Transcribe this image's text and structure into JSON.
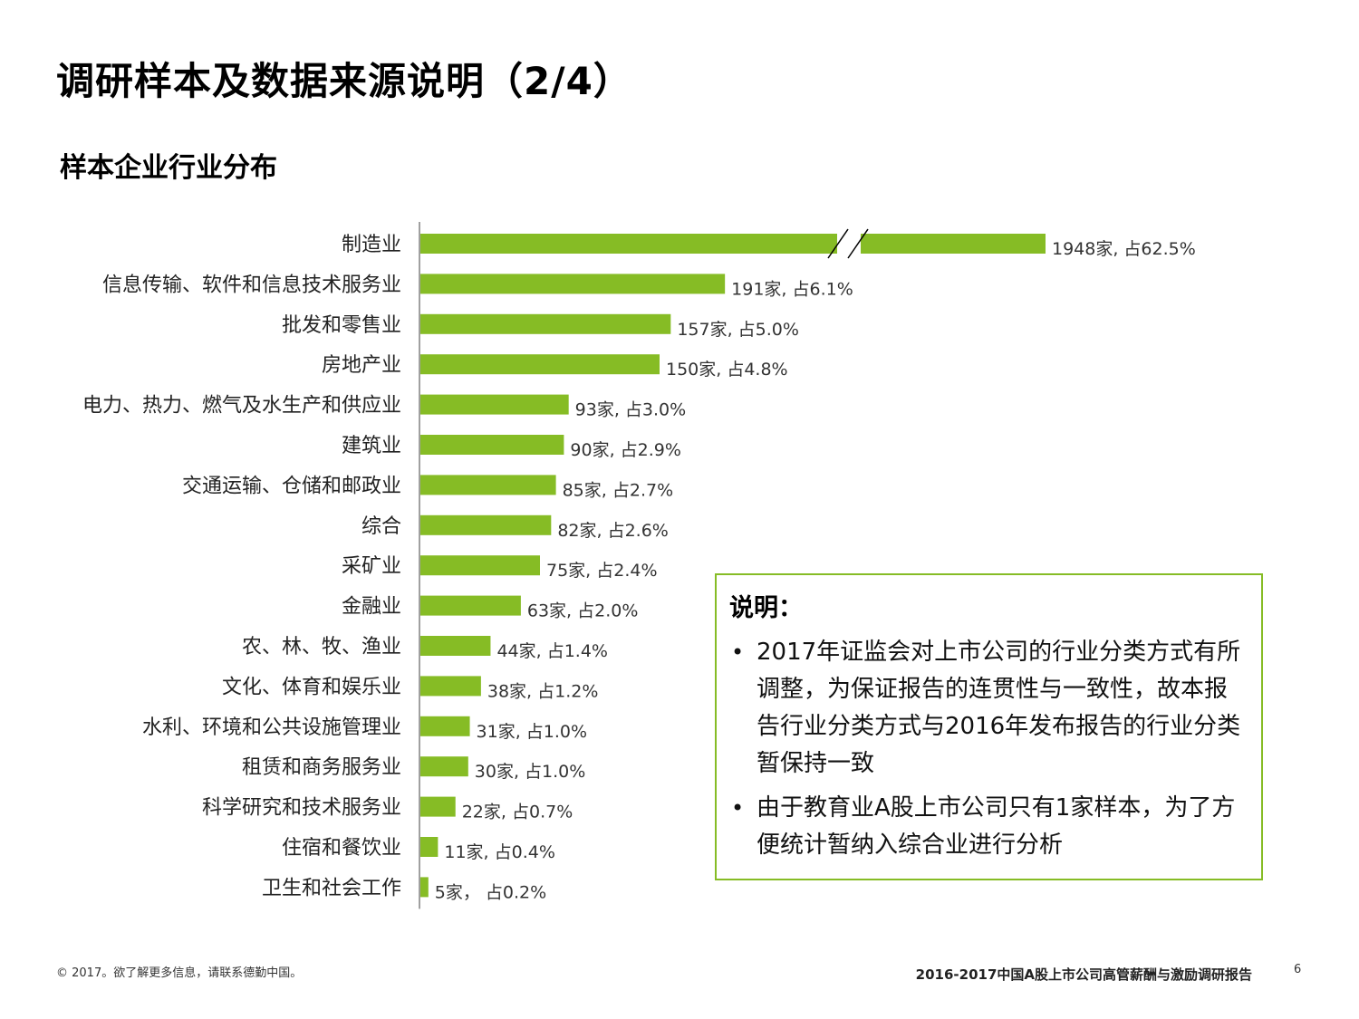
{
  "title": "调研样本及数据来源说明（2/4）",
  "subtitle": "样本企业行业分布",
  "colors": {
    "bar": "#86bc25",
    "border": "#86bc25",
    "axis": "#808080"
  },
  "chart_data": {
    "type": "bar",
    "orientation": "horizontal",
    "title": "样本企业行业分布",
    "axis_break": {
      "category": "制造业",
      "note": "bar truncated with break marks"
    },
    "categories": [
      "制造业",
      "信息传输、软件和信息技术服务业",
      "批发和零售业",
      "房地产业",
      "电力、热力、燃气及水生产和供应业",
      "建筑业",
      "交通运输、仓储和邮政业",
      "综合",
      "采矿业",
      "金融业",
      "农、林、牧、渔业",
      "文化、体育和娱乐业",
      "水利、环境和公共设施管理业",
      "租赁和商务服务业",
      "科学研究和技术服务业",
      "住宿和餐饮业",
      "卫生和社会工作"
    ],
    "values": [
      1948,
      191,
      157,
      150,
      93,
      90,
      85,
      82,
      75,
      63,
      44,
      38,
      31,
      30,
      22,
      11,
      5
    ],
    "percents": [
      62.5,
      6.1,
      5.0,
      4.8,
      3.0,
      2.9,
      2.7,
      2.6,
      2.4,
      2.0,
      1.4,
      1.2,
      1.0,
      1.0,
      0.7,
      0.4,
      0.2
    ],
    "data_labels": [
      "1948家, 占62.5%",
      "191家, 占6.1%",
      "157家, 占5.0%",
      "150家, 占4.8%",
      "93家, 占3.0%",
      "90家, 占2.9%",
      "85家, 占2.7%",
      "82家, 占2.6%",
      "75家, 占2.4%",
      "63家, 占2.0%",
      "44家, 占1.4%",
      "38家, 占1.2%",
      "31家, 占1.0%",
      "30家, 占1.0%",
      "22家, 占0.7%",
      "11家, 占0.4%",
      "5家， 占0.2%"
    ]
  },
  "note": {
    "heading": "说明：",
    "items": [
      "2017年证监会对上市公司的行业分类方式有所调整，为保证报告的连贯性与一致性，故本报告行业分类方式与2016年发布报告的行业分类暂保持一致",
      "由于教育业A股上市公司只有1家样本，为了方便统计暂纳入综合业进行分析"
    ]
  },
  "footer": {
    "copyright": "© 2017。欲了解更多信息，请联系德勤中国。",
    "report_title": "2016-2017中国A股上市公司高管薪酬与激励调研报告",
    "page_number": "6"
  }
}
